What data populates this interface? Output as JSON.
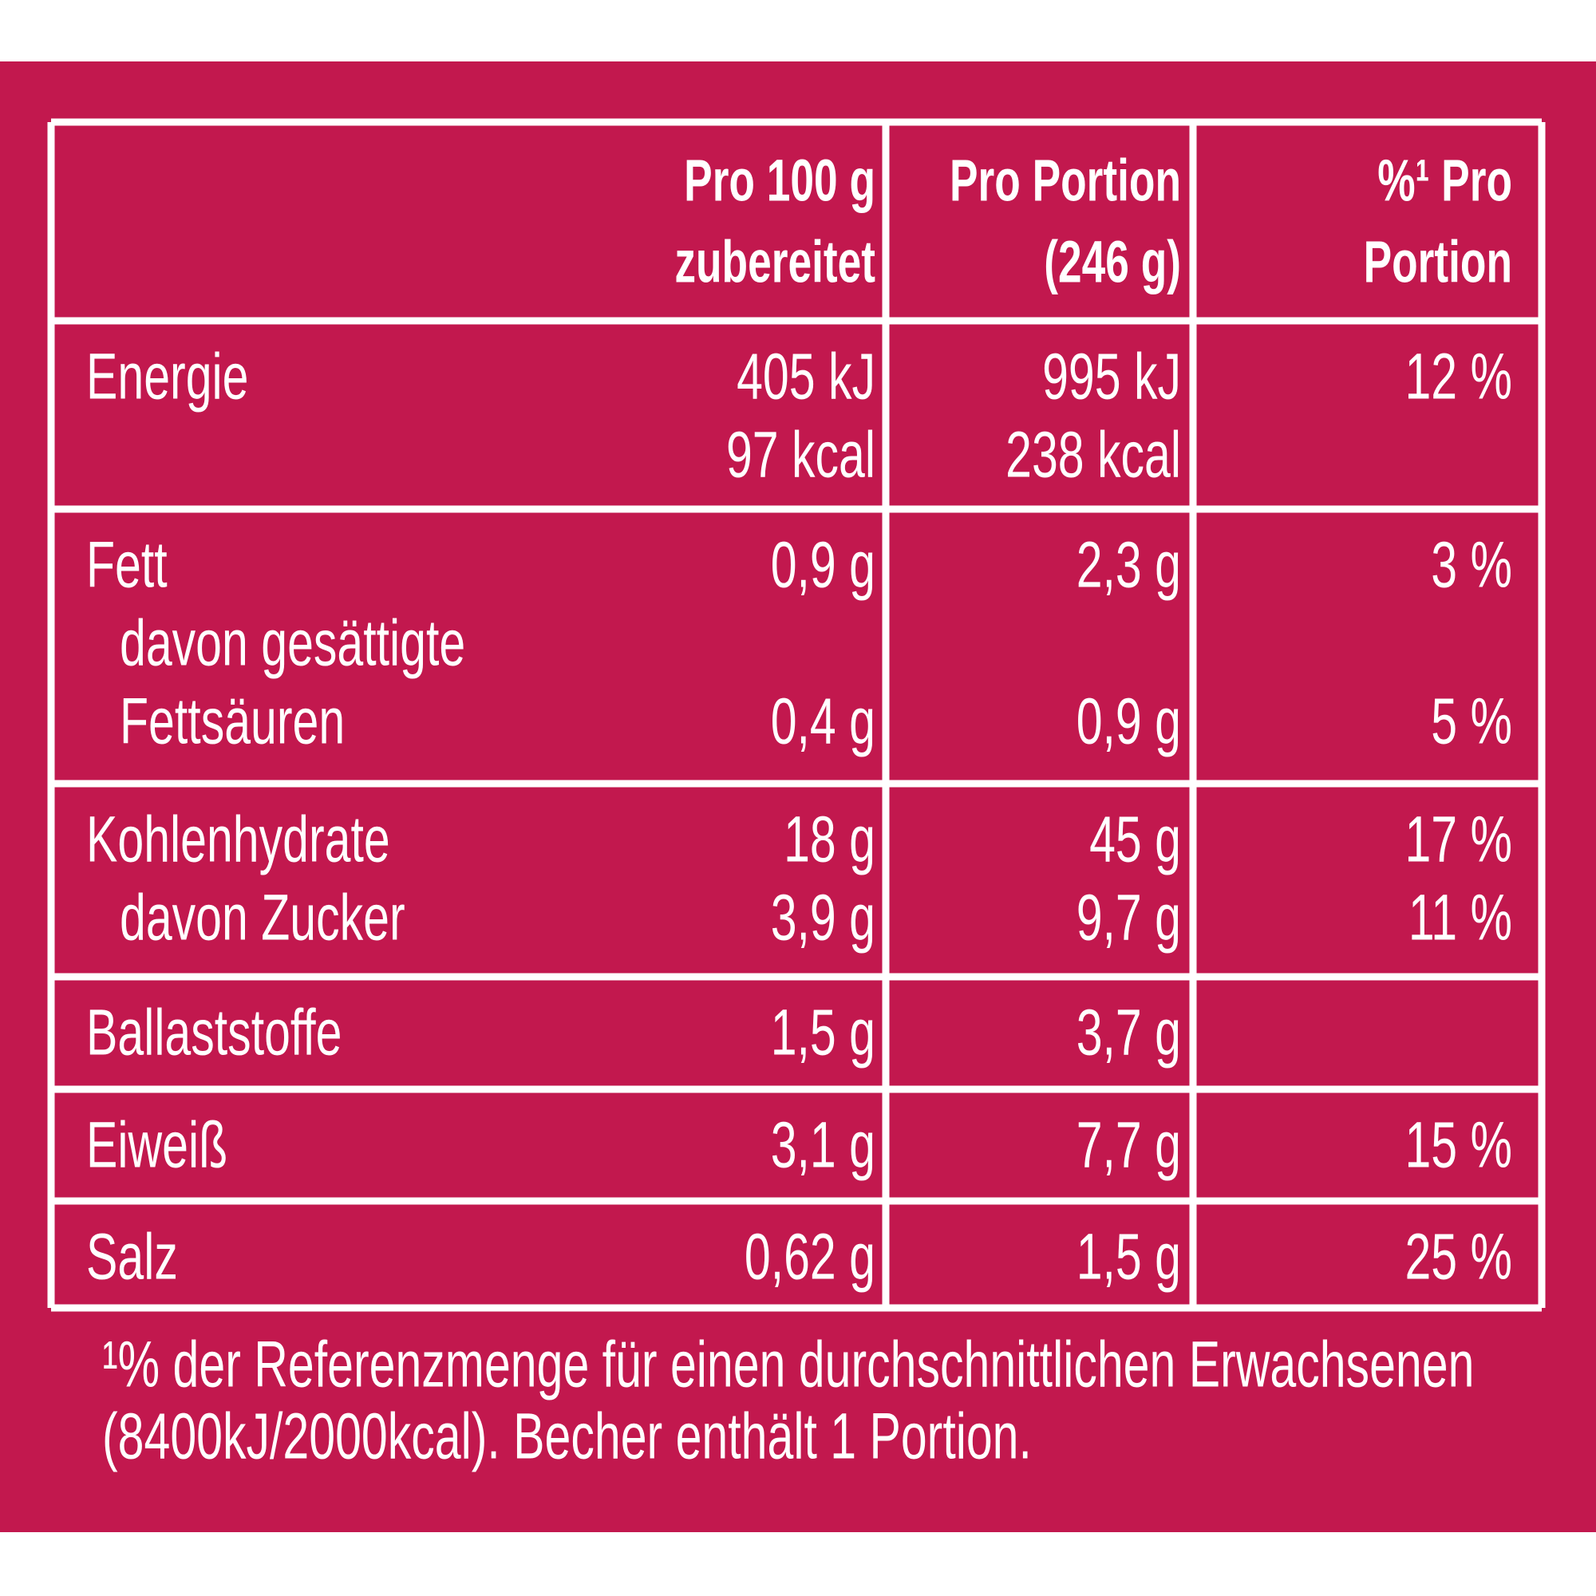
{
  "header": {
    "per_100g": [
      "Pro 100 g",
      "zubereitet"
    ],
    "per_portion": [
      "Pro Portion",
      "(246 g)"
    ],
    "percent": [
      "%¹ Pro",
      "Portion"
    ]
  },
  "rows": [
    [
      {
        "label": [
          "Energie"
        ],
        "per_100g": [
          "405 kJ",
          "97 kcal"
        ],
        "per_portion": [
          "995 kJ",
          "238 kcal"
        ],
        "percent": [
          "12 %"
        ]
      }
    ],
    [
      {
        "label": [
          "Fett"
        ],
        "per_100g": [
          "0,9 g"
        ],
        "per_portion": [
          "2,3 g"
        ],
        "percent": [
          "3 %"
        ]
      },
      {
        "label": [
          "davon gesättigte",
          "Fettsäuren"
        ],
        "per_100g": [
          "0,4 g"
        ],
        "per_portion": [
          "0,9 g"
        ],
        "percent": [
          "5 %"
        ]
      }
    ],
    [
      {
        "label": [
          "Kohlenhydrate"
        ],
        "per_100g": [
          "18 g"
        ],
        "per_portion": [
          "45 g"
        ],
        "percent": [
          "17 %"
        ]
      },
      {
        "label": [
          "davon Zucker"
        ],
        "per_100g": [
          "3,9 g"
        ],
        "per_portion": [
          "9,7 g"
        ],
        "percent": [
          "11 %"
        ]
      }
    ],
    [
      {
        "label": [
          "Ballaststoffe"
        ],
        "per_100g": [
          "1,5 g"
        ],
        "per_portion": [
          "3,7 g"
        ]
      }
    ],
    [
      {
        "label": [
          "Eiweiß"
        ],
        "per_100g": [
          "3,1 g"
        ],
        "per_portion": [
          "7,7 g"
        ],
        "percent": [
          "15 %"
        ]
      }
    ],
    [
      {
        "label": [
          "Salz"
        ],
        "per_100g": [
          "0,62 g"
        ],
        "per_portion": [
          "1,5 g"
        ],
        "percent": [
          "25 %"
        ]
      }
    ]
  ],
  "footnote": [
    "¹% der Referenzmenge für einen durchschnittlichen Erwachsenen",
    "(8400kJ/2000kcal). Becher enthält 1 Portion."
  ]
}
